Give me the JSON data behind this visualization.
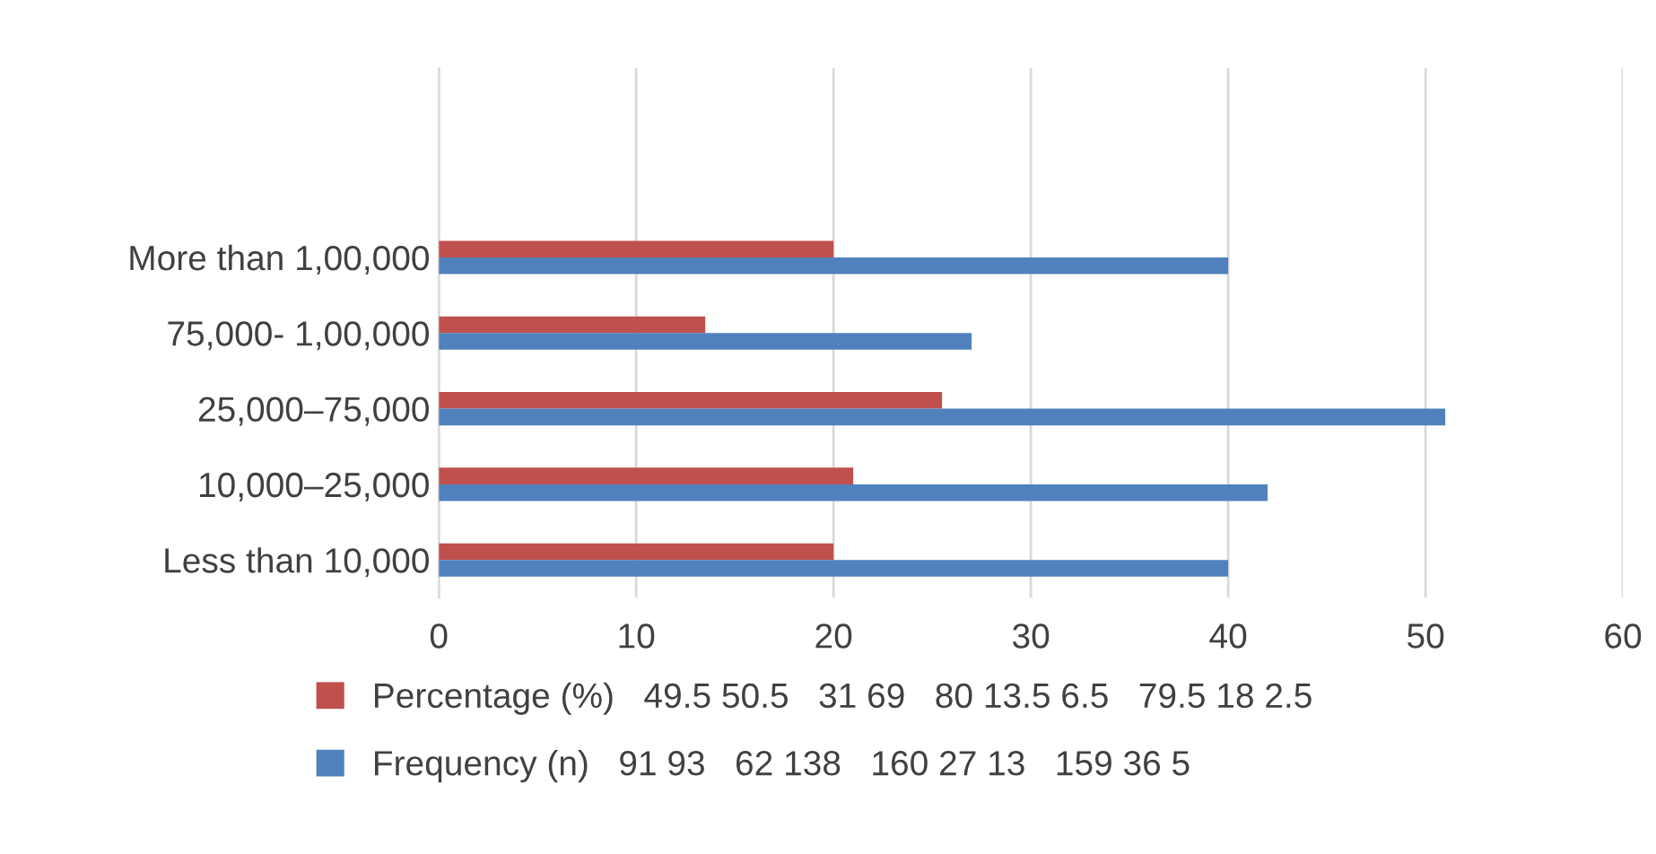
{
  "chart_data": {
    "type": "bar",
    "orientation": "horizontal",
    "categories": [
      null,
      null,
      "More than 1,00,000",
      "75,000- 1,00,000",
      "25,000–75,000",
      "10,000–25,000",
      "Less than 10,000"
    ],
    "series": [
      {
        "name": "Percentage (%)   49.5 50.5   31 69   80 13.5 6.5   79.5 18 2.5",
        "color": "#c0504d",
        "values": [
          null,
          null,
          20,
          13.5,
          25.5,
          21,
          20
        ]
      },
      {
        "name": "Frequency (n)   91 93   62 138   160 27 13   159 36 5",
        "color": "#4f81bd",
        "values": [
          null,
          null,
          40,
          27,
          51,
          42,
          40
        ]
      }
    ],
    "xlim": [
      0,
      60
    ],
    "xticks": [
      0,
      10,
      20,
      30,
      40,
      50,
      60
    ],
    "grid": "x",
    "legend": "bottom"
  }
}
